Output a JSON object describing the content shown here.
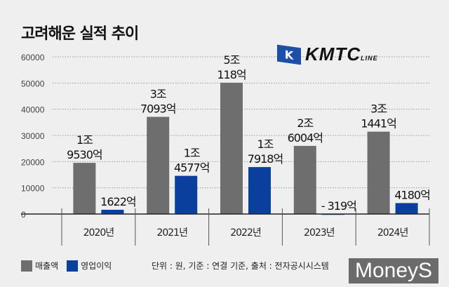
{
  "title": "고려해운 실적 추이",
  "logo": {
    "text": "KMTC",
    "sub": "LINE",
    "flag_letter": "K"
  },
  "watermark": "MoneyS",
  "source_note": "단위 : 원, 기준 : 연결 기준, 출처 : 전자공시시스템",
  "colors": {
    "revenue": "#6e6e6e",
    "operating_profit": "#0b3f9e",
    "background": "#efefef"
  },
  "chart_data": {
    "type": "bar",
    "title": "고려해운 실적 추이",
    "categories": [
      "2020년",
      "2021년",
      "2022년",
      "2023년",
      "2024년"
    ],
    "yticks": [
      "0",
      "10000",
      "20000",
      "30000",
      "40000",
      "50000",
      "60000"
    ],
    "ylim": [
      0,
      60000
    ],
    "grid": true,
    "legend_position": "bottom-left",
    "series": [
      {
        "name": "매출액",
        "values": [
          19530,
          37093,
          50118,
          26004,
          31441
        ],
        "labels": [
          [
            "1조",
            "9530억"
          ],
          [
            "3조",
            "7093억"
          ],
          [
            "5조",
            "118억"
          ],
          [
            "2조",
            "6004억"
          ],
          [
            "3조",
            "1441억"
          ]
        ]
      },
      {
        "name": "영업이익",
        "values": [
          1622,
          14577,
          17918,
          -319,
          4180
        ],
        "labels": [
          [
            "1622억"
          ],
          [
            "1조",
            "4577억"
          ],
          [
            "1조",
            "7918억"
          ],
          [
            "- 319억"
          ],
          [
            "4180억"
          ]
        ]
      }
    ]
  }
}
